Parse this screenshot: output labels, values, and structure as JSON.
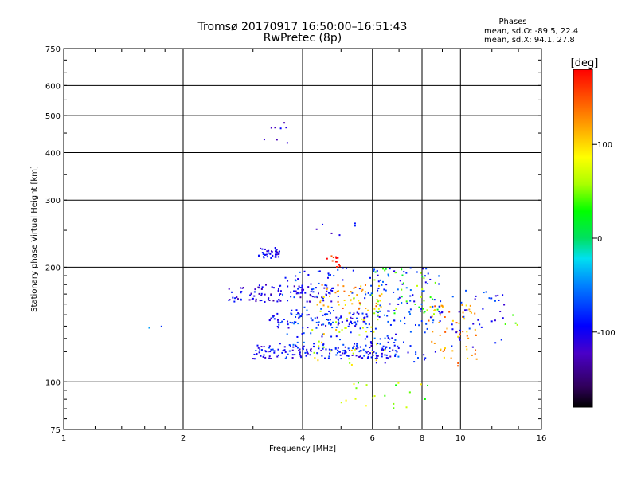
{
  "title_line1": "Tromsø 20170917 16:50:00–16:51:43",
  "title_line2": "RwPretec (8p)",
  "legend": {
    "title": "Phases",
    "line_o": "mean, sd,O: -89.5, 22.4",
    "line_x": "mean, sd,X:  94.1, 27.8"
  },
  "colorbar": {
    "title": "[deg]",
    "ticks": [
      100,
      0,
      -100
    ],
    "range": [
      -180,
      180
    ]
  },
  "chart_data": {
    "type": "scatter",
    "xlabel": "Frequency [MHz]",
    "ylabel": "Stationary phase Virtual Height [km]",
    "xscale": "log",
    "yscale": "log",
    "xlim": [
      1,
      16
    ],
    "ylim": [
      75,
      750
    ],
    "xticks": [
      1,
      2,
      4,
      6,
      8,
      10,
      16
    ],
    "yticks": [
      75,
      100,
      200,
      300,
      400,
      500,
      600,
      750
    ],
    "grid": true,
    "clusters": [
      {
        "x": [
          3.1,
          3.5
        ],
        "y": [
          210,
          225
        ],
        "phase": -100,
        "n": 40
      },
      {
        "x": [
          3.2,
          3.9
        ],
        "y": [
          415,
          490
        ],
        "phase": -120,
        "n": 8
      },
      {
        "x": [
          2.6,
          4.8
        ],
        "y": [
          162,
          180
        ],
        "phase": -110,
        "n": 110
      },
      {
        "x": [
          3.0,
          7.0
        ],
        "y": [
          115,
          125
        ],
        "phase": -95,
        "n": 170
      },
      {
        "x": [
          3.3,
          6.0
        ],
        "y": [
          138,
          152
        ],
        "phase": -90,
        "n": 90
      },
      {
        "x": [
          3.5,
          7.5
        ],
        "y": [
          125,
          200
        ],
        "phase": -80,
        "n": 140
      },
      {
        "x": [
          4.4,
          6.4
        ],
        "y": [
          155,
          180
        ],
        "phase": 120,
        "n": 45
      },
      {
        "x": [
          4.2,
          6.5
        ],
        "y": [
          110,
          170
        ],
        "phase": 80,
        "n": 50
      },
      {
        "x": [
          6.0,
          9.0
        ],
        "y": [
          112,
          200
        ],
        "phase": -85,
        "n": 80
      },
      {
        "x": [
          6.0,
          8.8
        ],
        "y": [
          150,
          200
        ],
        "phase": 40,
        "n": 35
      },
      {
        "x": [
          8.3,
          11.0
        ],
        "y": [
          110,
          160
        ],
        "phase": 120,
        "n": 60
      },
      {
        "x": [
          8.5,
          13.0
        ],
        "y": [
          120,
          175
        ],
        "phase": -90,
        "n": 45
      },
      {
        "x": [
          4.6,
          5.0
        ],
        "y": [
          200,
          215
        ],
        "phase": 170,
        "n": 12
      },
      {
        "x": [
          5.0,
          8.5
        ],
        "y": [
          85,
          100
        ],
        "phase": 60,
        "n": 20
      },
      {
        "x": [
          4.0,
          5.5
        ],
        "y": [
          240,
          262
        ],
        "phase": -100,
        "n": 6
      },
      {
        "x": [
          1.6,
          2.0
        ],
        "y": [
          130,
          140
        ],
        "phase": -50,
        "n": 2
      },
      {
        "x": [
          12.0,
          14.0
        ],
        "y": [
          140,
          150
        ],
        "phase": 60,
        "n": 4
      }
    ]
  }
}
